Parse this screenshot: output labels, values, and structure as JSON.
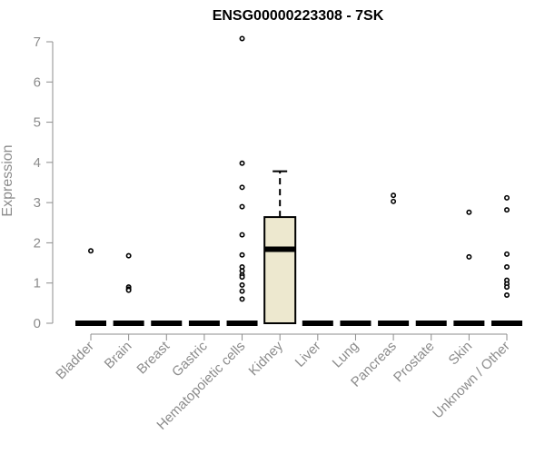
{
  "chart_data": {
    "type": "box",
    "title": "ENSG00000223308 - 7SK",
    "ylabel": "Expression",
    "xlabel": "",
    "ylim": [
      0,
      7
    ],
    "yticks": [
      0,
      1,
      2,
      3,
      4,
      5,
      6,
      7
    ],
    "colors": {
      "box_fill": "#ede8cf",
      "stroke": "#000000",
      "axis": "#8c8c8c",
      "text": "#8c8c8c"
    },
    "categories": [
      "Bladder",
      "Brain",
      "Breast",
      "Gastric",
      "Hematopoietic cells",
      "Kidney",
      "Liver",
      "Lung",
      "Pancreas",
      "Prostate",
      "Skin",
      "Unknown / Other"
    ],
    "boxes": [
      {
        "category": "Bladder",
        "min": 0,
        "q1": 0,
        "median": 0,
        "q3": 0,
        "max": 0,
        "outliers": [
          1.8
        ]
      },
      {
        "category": "Brain",
        "min": 0,
        "q1": 0,
        "median": 0,
        "q3": 0,
        "max": 0,
        "outliers": [
          1.68,
          0.9,
          0.85,
          0.82
        ]
      },
      {
        "category": "Breast",
        "min": 0,
        "q1": 0,
        "median": 0,
        "q3": 0,
        "max": 0,
        "outliers": []
      },
      {
        "category": "Gastric",
        "min": 0,
        "q1": 0,
        "median": 0,
        "q3": 0,
        "max": 0,
        "outliers": []
      },
      {
        "category": "Hematopoietic cells",
        "min": 0,
        "q1": 0,
        "median": 0,
        "q3": 0,
        "max": 0,
        "outliers": [
          7.08,
          3.98,
          3.38,
          2.9,
          2.2,
          1.7,
          1.4,
          1.3,
          1.2,
          1.15,
          0.95,
          0.8,
          0.6
        ]
      },
      {
        "category": "Kidney",
        "min": 0,
        "q1": 0,
        "median": 1.84,
        "q3": 2.64,
        "max": 3.78,
        "outliers": []
      },
      {
        "category": "Liver",
        "min": 0,
        "q1": 0,
        "median": 0,
        "q3": 0,
        "max": 0,
        "outliers": []
      },
      {
        "category": "Lung",
        "min": 0,
        "q1": 0,
        "median": 0,
        "q3": 0,
        "max": 0,
        "outliers": []
      },
      {
        "category": "Pancreas",
        "min": 0,
        "q1": 0,
        "median": 0,
        "q3": 0,
        "max": 0,
        "outliers": [
          3.18,
          3.03
        ]
      },
      {
        "category": "Prostate",
        "min": 0,
        "q1": 0,
        "median": 0,
        "q3": 0,
        "max": 0,
        "outliers": []
      },
      {
        "category": "Skin",
        "min": 0,
        "q1": 0,
        "median": 0,
        "q3": 0,
        "max": 0,
        "outliers": [
          2.76,
          1.65
        ]
      },
      {
        "category": "Unknown / Other",
        "min": 0,
        "q1": 0,
        "median": 0,
        "q3": 0,
        "max": 0,
        "outliers": [
          3.12,
          2.82,
          1.72,
          1.4,
          1.07,
          0.98,
          0.9,
          0.7
        ]
      }
    ]
  }
}
